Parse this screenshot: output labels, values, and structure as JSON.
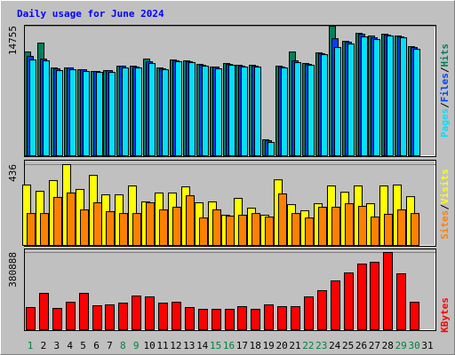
{
  "chart_data": {
    "type": "bar",
    "title": "Daily usage for June 2024",
    "categories": [
      "1",
      "2",
      "3",
      "4",
      "5",
      "6",
      "7",
      "8",
      "9",
      "10",
      "11",
      "12",
      "13",
      "14",
      "15",
      "16",
      "17",
      "18",
      "19",
      "20",
      "21",
      "22",
      "23",
      "24",
      "25",
      "26",
      "27",
      "28",
      "29",
      "30",
      "31"
    ],
    "highlight_categories": [
      "1",
      "8",
      "9",
      "15",
      "16",
      "22",
      "23",
      "29",
      "30"
    ],
    "highlight_color": "#008040",
    "legend_separator": "/",
    "panels": [
      {
        "ylim": [
          0,
          14755
        ],
        "yticks": [
          14755
        ],
        "series": [
          {
            "name": "Hits",
            "color": "#00805c",
            "values": [
              11817,
              12827,
              9999,
              9999,
              9797,
              9595,
              9696,
              10201,
              10201,
              11009,
              9999,
              10908,
              10807,
              10403,
              10100,
              10504,
              10302,
              10302,
              1818,
              10201,
              11817,
              10504,
              11716,
              14755,
              13029,
              13938,
              13635,
              13837,
              13635,
              12423,
              null
            ]
          },
          {
            "name": "Files",
            "color": "#0040ff",
            "values": [
              11312,
              11009,
              9898,
              9999,
              9797,
              9595,
              9696,
              10201,
              10100,
              10706,
              9898,
              10807,
              10706,
              10302,
              10100,
              10403,
              10201,
              10201,
              1717,
              10100,
              10807,
              10403,
              11615,
              13332,
              12928,
              13837,
              13433,
              13736,
              13534,
              12322,
              null
            ]
          },
          {
            "name": "Pages",
            "color": "#00e0ff",
            "values": [
              10908,
              10807,
              9696,
              9797,
              9595,
              9494,
              9494,
              9999,
              9999,
              10504,
              9797,
              10706,
              10605,
              10201,
              9898,
              10302,
              10100,
              10100,
              1515,
              9999,
              10605,
              10302,
              11514,
              12322,
              12726,
              13534,
              13231,
              13635,
              13433,
              12120,
              null
            ]
          }
        ]
      },
      {
        "ylim": [
          0,
          436
        ],
        "yticks": [
          436
        ],
        "series": [
          {
            "name": "Visits",
            "color": "#ffff00",
            "values": [
              326,
              292,
              350,
              436,
              302,
              378,
              273,
              273,
              321,
              235,
              283,
              283,
              316,
              230,
              235,
              163,
              254,
              201,
              163,
              354,
              220,
              187,
              225,
              321,
              287,
              321,
              225,
              321,
              326,
              263,
              null
            ]
          },
          {
            "name": "Sites",
            "color": "#ff8000",
            "values": [
              172,
              172,
              259,
              283,
              192,
              230,
              182,
              172,
              172,
              230,
              192,
              206,
              268,
              148,
              192,
              158,
              163,
              172,
              153,
              278,
              172,
              148,
              206,
              206,
              225,
              211,
              153,
              168,
              192,
              172,
              null
            ]
          }
        ]
      },
      {
        "ylim": [
          0,
          380888
        ],
        "yticks": [
          380888
        ],
        "series": [
          {
            "name": "KBytes",
            "color": "#ff0000",
            "values": [
              109450,
              179498,
              105072,
              135718,
              179498,
              118206,
              122584,
              131340,
              166364,
              161986,
              131340,
              135718,
              109450,
              100694,
              100694,
              100694,
              113828,
              100694,
              122584,
              113828,
              113828,
              161986,
              192632,
              240790,
              280192,
              323972,
              332728,
              380888,
              275814,
              135718,
              null
            ]
          }
        ]
      }
    ]
  }
}
